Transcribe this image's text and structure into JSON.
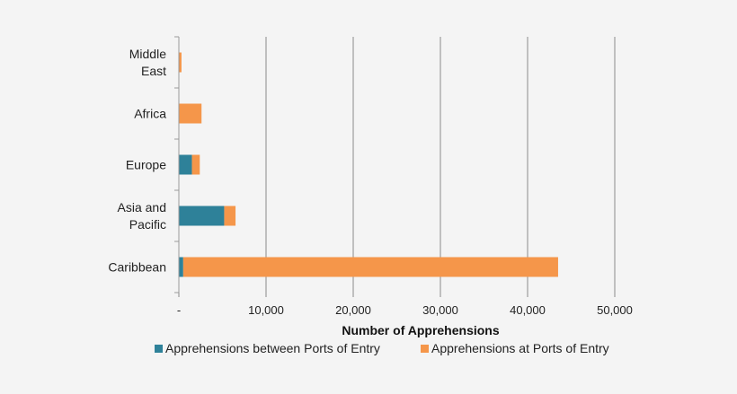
{
  "chart_data": {
    "type": "bar",
    "orientation": "horizontal",
    "stacked": true,
    "categories": [
      "Middle East",
      "Africa",
      "Europe",
      "Asia and Pacific",
      "Caribbean"
    ],
    "category_label_lines": [
      [
        "Middle",
        "East"
      ],
      [
        "Africa"
      ],
      [
        "Europe"
      ],
      [
        "Asia and",
        "Pacific"
      ],
      [
        "Caribbean"
      ]
    ],
    "series": [
      {
        "name": "Apprehensions between Ports of Entry",
        "color": "#2e8199",
        "values": [
          0,
          0,
          1500,
          5200,
          500
        ]
      },
      {
        "name": "Apprehensions at Ports of Entry",
        "color": "#f5964a",
        "values": [
          300,
          2600,
          900,
          1300,
          43000
        ]
      }
    ],
    "xlabel": "Number of Apprehensions",
    "xlim": [
      0,
      50000
    ],
    "xticks": [
      0,
      10000,
      20000,
      30000,
      40000,
      50000
    ],
    "xtick_labels": [
      "-",
      "10,000",
      "20,000",
      "30,000",
      "40,000",
      "50,000"
    ],
    "grid": "vertical",
    "legend_position": "bottom"
  }
}
